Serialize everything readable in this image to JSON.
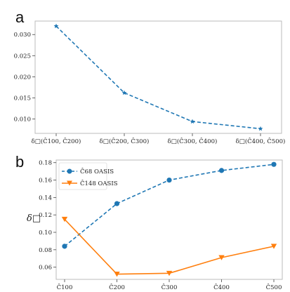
{
  "chart_data": [
    {
      "panel_label": "a",
      "type": "line",
      "categories": [
        "δ□(Ĉ100, Ĉ200)",
        "δ□(Ĉ200, Ĉ300)",
        "δ□(Ĉ300, Ĉ400)",
        "δ□(Ĉ400, Ĉ500)"
      ],
      "series": [
        {
          "name": "",
          "values": [
            0.032,
            0.0162,
            0.0094,
            0.0077
          ],
          "color": "#1f77b4",
          "marker": "star",
          "linestyle": "dashed"
        }
      ],
      "yticks": [
        "0.010",
        "0.015",
        "0.020",
        "0.025",
        "0.030"
      ],
      "ylim": [
        0.0066,
        0.0332
      ],
      "xlabel": "",
      "ylabel": "",
      "grid": false
    },
    {
      "panel_label": "b",
      "type": "line",
      "categories": [
        "Ĉ100",
        "Ĉ200",
        "Ĉ300",
        "Ĉ400",
        "Ĉ500"
      ],
      "series": [
        {
          "name": "Ĉ68 OASIS",
          "values": [
            0.084,
            0.133,
            0.16,
            0.171,
            0.178
          ],
          "color": "#1f77b4",
          "marker": "circle",
          "linestyle": "dashed"
        },
        {
          "name": "Ĉ148 OASIS",
          "values": [
            0.115,
            0.052,
            0.053,
            0.071,
            0.084
          ],
          "color": "#ff7f0e",
          "marker": "triangle-down",
          "linestyle": "solid"
        }
      ],
      "yticks": [
        "0.06",
        "0.08",
        "0.10",
        "0.12",
        "0.14",
        "0.16",
        "0.18"
      ],
      "ylim": [
        0.046,
        0.183
      ],
      "xlabel": "",
      "ylabel": "δ□",
      "legend": "top-left",
      "grid": false
    }
  ]
}
